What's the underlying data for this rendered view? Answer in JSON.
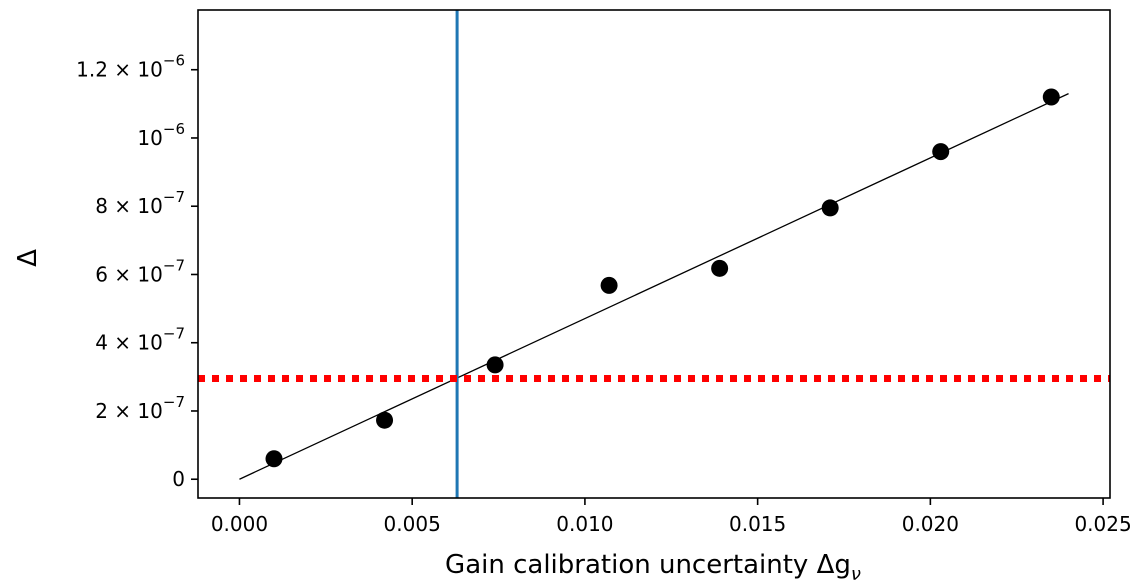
{
  "chart_data": {
    "type": "scatter",
    "title": "",
    "xlabel": "Gain calibration uncertainty Δg",
    "xlabel_subscript": "ν",
    "ylabel": "Δ",
    "xlim": [
      -0.0012,
      0.0252
    ],
    "ylim": [
      -5.5e-08,
      1.375e-06
    ],
    "x_ticks": [
      {
        "value": 0.0,
        "label": "0.000"
      },
      {
        "value": 0.005,
        "label": "0.005"
      },
      {
        "value": 0.01,
        "label": "0.010"
      },
      {
        "value": 0.015,
        "label": "0.015"
      },
      {
        "value": 0.02,
        "label": "0.020"
      },
      {
        "value": 0.025,
        "label": "0.025"
      }
    ],
    "y_ticks": [
      {
        "value": 0,
        "mantissa": "0",
        "exponent": ""
      },
      {
        "value": 2e-07,
        "mantissa": "2 × 10",
        "exponent": "−7"
      },
      {
        "value": 4e-07,
        "mantissa": "4 × 10",
        "exponent": "−7"
      },
      {
        "value": 6e-07,
        "mantissa": "6 × 10",
        "exponent": "−7"
      },
      {
        "value": 8e-07,
        "mantissa": "8 × 10",
        "exponent": "−7"
      },
      {
        "value": 1e-06,
        "mantissa": "10",
        "exponent": "−6"
      },
      {
        "value": 1.2e-06,
        "mantissa": "1.2 × 10",
        "exponent": "−6"
      }
    ],
    "series": [
      {
        "type": "scatter",
        "color": "#000000",
        "x": [
          0.001,
          0.0042,
          0.0074,
          0.0107,
          0.0139,
          0.0171,
          0.0203,
          0.0235
        ],
        "y": [
          6e-08,
          1.73e-07,
          3.35e-07,
          5.68e-07,
          6.18e-07,
          7.95e-07,
          9.6e-07,
          1.12e-06
        ]
      },
      {
        "type": "line",
        "color": "#000000",
        "x": [
          0.0,
          0.024
        ],
        "y": [
          0.0,
          1.13e-06
        ]
      }
    ],
    "reference_lines": [
      {
        "orientation": "vertical",
        "x": 0.0063,
        "color": "#1f77b4",
        "style": "solid"
      },
      {
        "orientation": "horizontal",
        "y": 2.95e-07,
        "color": "#ff0000",
        "style": "dotted"
      }
    ],
    "grid": false,
    "legend": "none"
  }
}
